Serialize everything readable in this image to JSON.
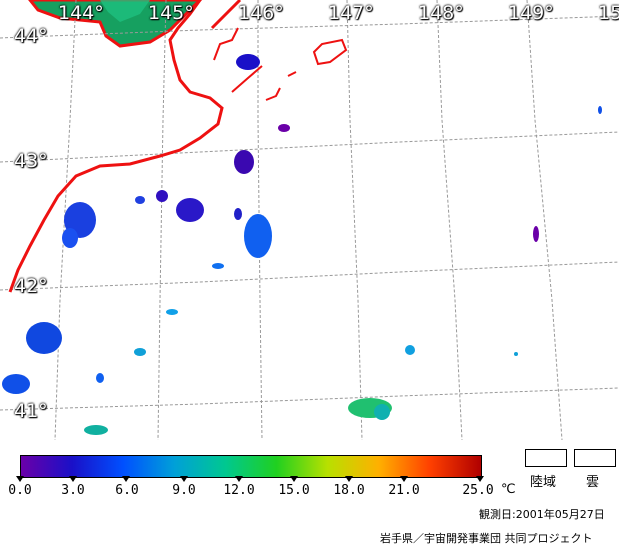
{
  "map": {
    "longitude_labels": [
      "144°",
      "145°",
      "146°",
      "147°",
      "148°",
      "149°",
      "15"
    ],
    "latitude_labels": [
      "44°",
      "43°",
      "42°",
      "41°"
    ],
    "coastline_color": "#ee1111",
    "grid_color": "#999999"
  },
  "scale": {
    "ticks": [
      "0.0",
      "3.0",
      "6.0",
      "9.0",
      "12.0",
      "15.0",
      "18.0",
      "21.0",
      "25.0"
    ],
    "unit": "℃",
    "gradient_colors": [
      "#6a00a8",
      "#1a10c8",
      "#0050ff",
      "#00a0d8",
      "#00c890",
      "#20d020",
      "#b8e000",
      "#ffb000",
      "#ff4000",
      "#b00000"
    ]
  },
  "legend": {
    "land_label": "陸域",
    "cloud_label": "雲"
  },
  "footer": {
    "observation_date": "観測日:2001年05月27日",
    "credit": "岩手県／宇宙開発事業団 共同プロジェクト"
  }
}
